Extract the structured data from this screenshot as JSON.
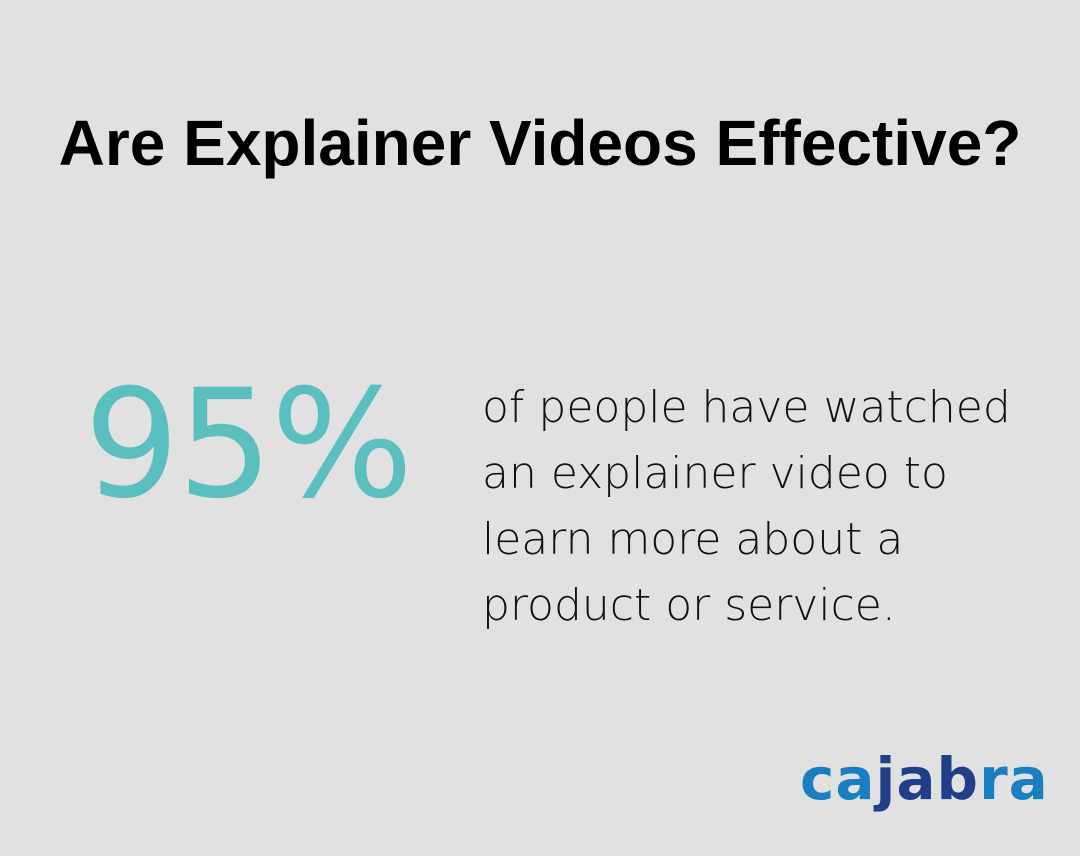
{
  "title": "Are Explainer Videos Effective?",
  "stat": {
    "value": "95%",
    "description": "of people have watched an explainer video to learn more about a product or service."
  },
  "logo": {
    "text": "cajabra",
    "part1": "ca",
    "part2": "jab",
    "part3": "ra",
    "colors": {
      "light": "#1a7ec2",
      "dark": "#1f3f8a"
    }
  },
  "colors": {
    "background": "#e0e1e0",
    "accent": "#5cbfbf"
  }
}
